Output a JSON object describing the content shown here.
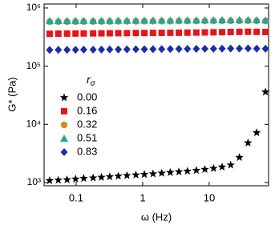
{
  "chart_data": {
    "type": "scatter",
    "x_label": "ω (Hz)",
    "y_label": "G* (Pa)",
    "legend_title": "r",
    "legend_title_sub": "σ",
    "legend_position": "left",
    "xscale": "log",
    "yscale": "log",
    "xlim": [
      0.033,
      78
    ],
    "ylim": [
      880,
      1170000
    ],
    "xticks": [
      0.1,
      1,
      10
    ],
    "yticks": [
      {
        "value": 1000,
        "label": "10³"
      },
      {
        "value": 10000,
        "label": "10⁴"
      },
      {
        "value": 100000,
        "label": "10⁵"
      },
      {
        "value": 1000000,
        "label": "10⁶"
      }
    ],
    "x": [
      0.04,
      0.054,
      0.073,
      0.098,
      0.13,
      0.18,
      0.24,
      0.32,
      0.43,
      0.58,
      0.79,
      1.06,
      1.43,
      1.93,
      2.6,
      3.5,
      4.7,
      6.4,
      8.6,
      11.6,
      15.6,
      21,
      28.4,
      38.3,
      51.6,
      70
    ],
    "series": [
      {
        "name": "0.00",
        "color": "#000000",
        "marker": "star",
        "values": [
          1080,
          1100,
          1120,
          1150,
          1180,
          1200,
          1230,
          1260,
          1290,
          1320,
          1350,
          1380,
          1410,
          1450,
          1490,
          1530,
          1570,
          1620,
          1680,
          1750,
          1850,
          2000,
          2700,
          4800,
          7200,
          36000
        ]
      },
      {
        "name": "0.16",
        "color": "#e3161c",
        "marker": "square",
        "values": [
          360000,
          362000,
          363000,
          364000,
          365000,
          366000,
          367000,
          368000,
          369000,
          370000,
          371000,
          372000,
          373000,
          374000,
          375000,
          376000,
          377000,
          378000,
          380000,
          382000,
          384000,
          386000,
          388000,
          390000,
          388000,
          386000
        ]
      },
      {
        "name": "0.32",
        "color": "#c8901a",
        "marker": "circle",
        "values": [
          580000,
          581000,
          582000,
          583000,
          584000,
          585000,
          586000,
          587000,
          588000,
          589000,
          590000,
          591000,
          592000,
          593000,
          594000,
          595000,
          596000,
          597000,
          598000,
          599000,
          600000,
          601000,
          602000,
          603000,
          600000,
          598000
        ]
      },
      {
        "name": "0.51",
        "color": "#1fa6a6",
        "marker": "triangle",
        "values": [
          600000,
          601000,
          602000,
          603000,
          604000,
          605000,
          606000,
          607000,
          608000,
          609000,
          610000,
          611000,
          612000,
          613000,
          614000,
          615000,
          616000,
          617000,
          618000,
          619000,
          620000,
          621000,
          622000,
          623000,
          620000,
          615000
        ]
      },
      {
        "name": "0.83",
        "color": "#1a2fa6",
        "marker": "diamond",
        "values": [
          190000,
          190500,
          191000,
          191500,
          192000,
          192500,
          193000,
          193500,
          194000,
          194500,
          195000,
          195500,
          196000,
          196500,
          197000,
          197500,
          198000,
          198500,
          199000,
          199500,
          200000,
          200500,
          201000,
          201500,
          200000,
          199000
        ]
      }
    ]
  }
}
